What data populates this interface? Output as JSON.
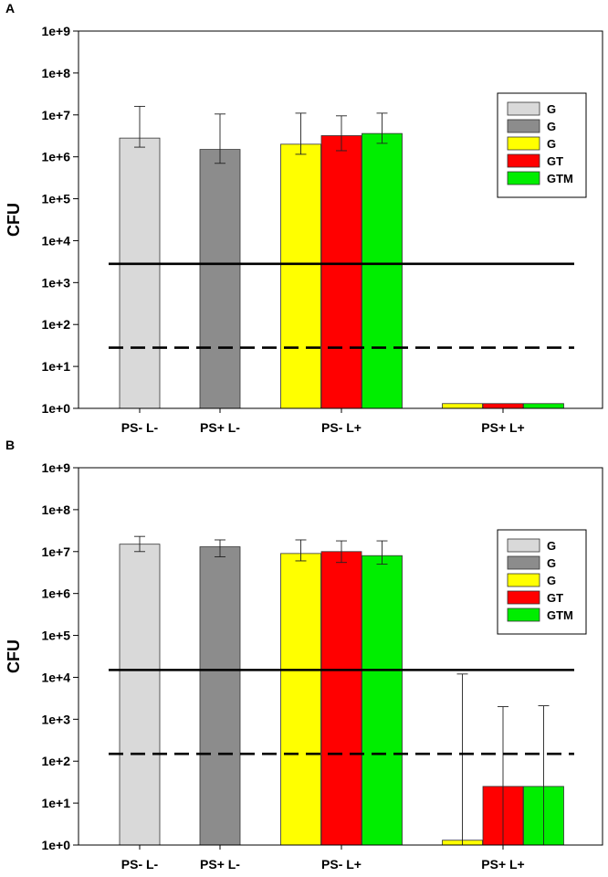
{
  "chart_data": [
    {
      "type": "bar",
      "panel_label": "A",
      "ylabel": "CFU",
      "yscale": "log",
      "ylim": [
        1,
        1000000000
      ],
      "ytick_labels": [
        "1e+0",
        "1e+1",
        "1e+2",
        "1e+3",
        "1e+4",
        "1e+5",
        "1e+6",
        "1e+7",
        "1e+8",
        "1e+9"
      ],
      "categories": [
        "PS- L-",
        "PS+ L-",
        "PS- L+",
        "PS+ L+"
      ],
      "legend": [
        {
          "label": "G",
          "color": "#d9d9d9"
        },
        {
          "label": "G",
          "color": "#8c8c8c"
        },
        {
          "label": "G",
          "color": "#ffff00"
        },
        {
          "label": "GT",
          "color": "#ff0000"
        },
        {
          "label": "GTM",
          "color": "#00ee00"
        }
      ],
      "legend_position": "upper-right",
      "bars": [
        {
          "category": "PS- L-",
          "series": 0,
          "value": 2800000,
          "err_low": 1700000,
          "err_high": 16000000
        },
        {
          "category": "PS+ L-",
          "series": 1,
          "value": 1500000,
          "err_low": 700000,
          "err_high": 10500000
        },
        {
          "category": "PS- L+",
          "series": 2,
          "value": 2000000,
          "err_low": 1150000,
          "err_high": 11000000
        },
        {
          "category": "PS- L+",
          "series": 3,
          "value": 3200000,
          "err_low": 1400000,
          "err_high": 9500000
        },
        {
          "category": "PS- L+",
          "series": 4,
          "value": 3600000,
          "err_low": 2100000,
          "err_high": 11000000
        },
        {
          "category": "PS+ L+",
          "series": 2,
          "value": 1.3
        },
        {
          "category": "PS+ L+",
          "series": 3,
          "value": 1.3
        },
        {
          "category": "PS+ L+",
          "series": 4,
          "value": 1.3
        }
      ],
      "hlines": [
        {
          "value": 2800,
          "style": "solid"
        },
        {
          "value": 28,
          "style": "dashed"
        }
      ]
    },
    {
      "type": "bar",
      "panel_label": "B",
      "ylabel": "CFU",
      "yscale": "log",
      "ylim": [
        1,
        1000000000
      ],
      "ytick_labels": [
        "1e+0",
        "1e+1",
        "1e+2",
        "1e+3",
        "1e+4",
        "1e+5",
        "1e+6",
        "1e+7",
        "1e+8",
        "1e+9"
      ],
      "categories": [
        "PS- L-",
        "PS+ L-",
        "PS- L+",
        "PS+ L+"
      ],
      "legend": [
        {
          "label": "G",
          "color": "#d9d9d9"
        },
        {
          "label": "G",
          "color": "#8c8c8c"
        },
        {
          "label": "G",
          "color": "#ffff00"
        },
        {
          "label": "GT",
          "color": "#ff0000"
        },
        {
          "label": "GTM",
          "color": "#00ee00"
        }
      ],
      "legend_position": "upper-right",
      "bars": [
        {
          "category": "PS- L-",
          "series": 0,
          "value": 15000000,
          "err_low": 10000000,
          "err_high": 23000000
        },
        {
          "category": "PS+ L-",
          "series": 1,
          "value": 13000000,
          "err_low": 7500000,
          "err_high": 19000000
        },
        {
          "category": "PS- L+",
          "series": 2,
          "value": 9000000,
          "err_low": 6000000,
          "err_high": 19000000
        },
        {
          "category": "PS- L+",
          "series": 3,
          "value": 10000000,
          "err_low": 5500000,
          "err_high": 18000000
        },
        {
          "category": "PS- L+",
          "series": 4,
          "value": 8000000,
          "err_low": 5000000,
          "err_high": 18000000
        },
        {
          "category": "PS+ L+",
          "series": 2,
          "value": 1.3,
          "err_low": 1,
          "err_high": 12000
        },
        {
          "category": "PS+ L+",
          "series": 3,
          "value": 25,
          "err_low": 1,
          "err_high": 2000
        },
        {
          "category": "PS+ L+",
          "series": 4,
          "value": 25,
          "err_low": 1,
          "err_high": 2100
        }
      ],
      "hlines": [
        {
          "value": 15000,
          "style": "solid"
        },
        {
          "value": 150,
          "style": "dashed"
        }
      ]
    }
  ]
}
